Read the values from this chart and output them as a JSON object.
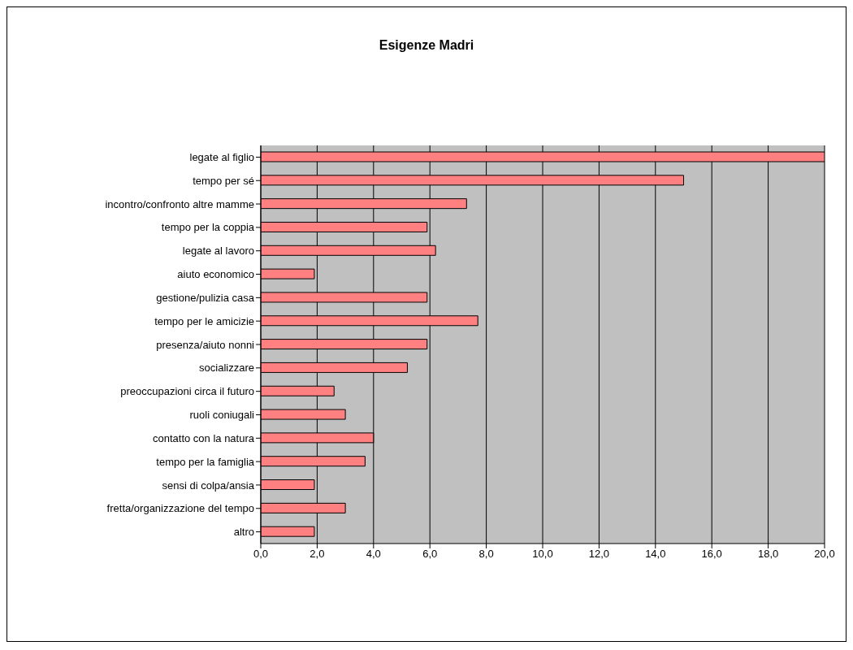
{
  "chart_data": {
    "type": "bar",
    "orientation": "horizontal",
    "title": "Esigenze Madri",
    "categories": [
      "legate al figlio",
      "tempo per sé",
      "incontro/confronto altre mamme",
      "tempo per la coppia",
      "legate al lavoro",
      "aiuto economico",
      "gestione/pulizia casa",
      "tempo per le amicizie",
      "presenza/aiuto nonni",
      "socializzare",
      "preoccupazioni circa il futuro",
      "ruoli coniugali",
      "contatto con la natura",
      "tempo per la famiglia",
      "sensi di colpa/ansia",
      "fretta/organizzazione del tempo",
      "altro"
    ],
    "values": [
      20.0,
      15.0,
      7.3,
      5.9,
      6.2,
      1.9,
      5.9,
      7.7,
      5.9,
      5.2,
      2.6,
      3.0,
      4.0,
      3.7,
      1.9,
      3.0,
      1.9
    ],
    "color": "#ff8080",
    "xlim": [
      0,
      20
    ],
    "xticks": [
      {
        "value": 0,
        "label": "0,0"
      },
      {
        "value": 2,
        "label": "2,0"
      },
      {
        "value": 4,
        "label": "4,0"
      },
      {
        "value": 6,
        "label": "6,0"
      },
      {
        "value": 8,
        "label": "8,0"
      },
      {
        "value": 10,
        "label": "10,0"
      },
      {
        "value": 12,
        "label": "12,0"
      },
      {
        "value": 14,
        "label": "14,0"
      },
      {
        "value": 16,
        "label": "16,0"
      },
      {
        "value": 18,
        "label": "18,0"
      },
      {
        "value": 20,
        "label": "20,0"
      }
    ],
    "grid": "x",
    "legend": false
  }
}
